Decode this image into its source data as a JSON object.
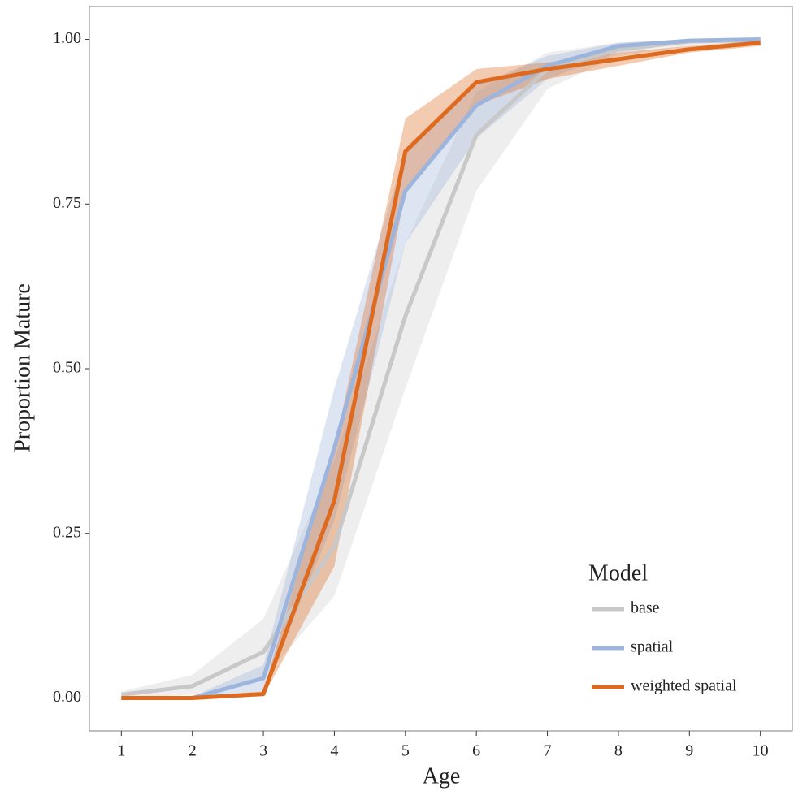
{
  "chart_data": {
    "type": "line",
    "x_label": "Age",
    "y_label": "Proportion Mature",
    "x": [
      1,
      2,
      3,
      4,
      5,
      6,
      7,
      8,
      9,
      10
    ],
    "series": [
      {
        "name": "base",
        "color": "#c8c8c8",
        "values": [
          0.005,
          0.018,
          0.07,
          0.23,
          0.58,
          0.855,
          0.955,
          0.985,
          0.997,
          0.999
        ],
        "lower": [
          0,
          0.005,
          0.03,
          0.155,
          0.47,
          0.77,
          0.925,
          0.975,
          0.99,
          0.997
        ],
        "upper": [
          0.01,
          0.035,
          0.12,
          0.36,
          0.69,
          0.92,
          0.98,
          0.995,
          1.0,
          1.0
        ]
      },
      {
        "name": "spatial",
        "color": "#9db5dc",
        "values": [
          0,
          0,
          0.03,
          0.38,
          0.77,
          0.9,
          0.96,
          0.99,
          0.998,
          1.0
        ],
        "lower": [
          0,
          0,
          0.01,
          0.27,
          0.69,
          0.85,
          0.94,
          0.98,
          0.995,
          0.998
        ],
        "upper": [
          0.002,
          0.002,
          0.05,
          0.47,
          0.83,
          0.93,
          0.975,
          0.995,
          1.0,
          1.0
        ]
      },
      {
        "name": "weighted spatial",
        "color": "#dd6a1f",
        "values": [
          0,
          0,
          0.006,
          0.3,
          0.83,
          0.935,
          0.955,
          0.97,
          0.985,
          0.995
        ],
        "lower": [
          0,
          0,
          0.003,
          0.2,
          0.77,
          0.9,
          0.94,
          0.96,
          0.98,
          0.99
        ],
        "upper": [
          0.002,
          0.002,
          0.01,
          0.38,
          0.88,
          0.955,
          0.965,
          0.98,
          0.99,
          0.998
        ]
      }
    ],
    "legend_title": "Model",
    "legend_position": "bottom-right",
    "xlim": [
      0.55,
      10.45
    ],
    "xticks": [
      1,
      2,
      3,
      4,
      5,
      6,
      7,
      8,
      9,
      10
    ],
    "ylim": [
      -0.05,
      1.05
    ],
    "yticks": [
      {
        "value": 0,
        "label": "0.00"
      },
      {
        "value": 0.25,
        "label": "0.25"
      },
      {
        "value": 0.5,
        "label": "0.50"
      },
      {
        "value": 0.75,
        "label": "0.75"
      },
      {
        "value": 1,
        "label": "1.00"
      }
    ]
  }
}
